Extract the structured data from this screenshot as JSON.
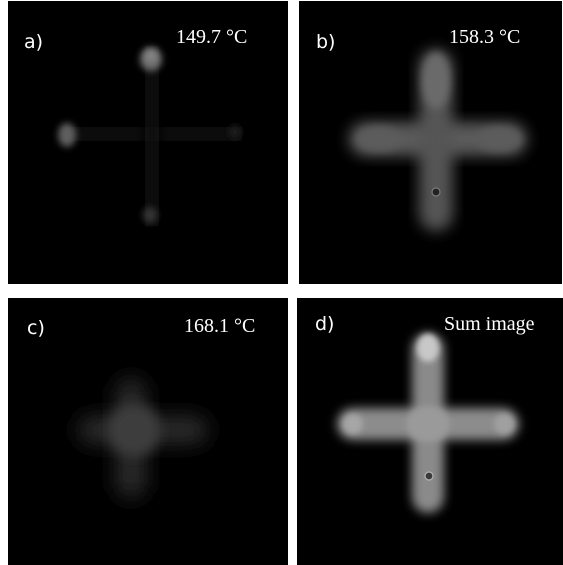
{
  "panels": [
    {
      "id": "a",
      "label": "a)",
      "caption": "149.7 °C"
    },
    {
      "id": "b",
      "label": "b)",
      "caption": "158.3 °C"
    },
    {
      "id": "c",
      "label": "c)",
      "caption": "168.1 °C"
    },
    {
      "id": "d",
      "label": "d)",
      "caption": "Sum image"
    }
  ]
}
